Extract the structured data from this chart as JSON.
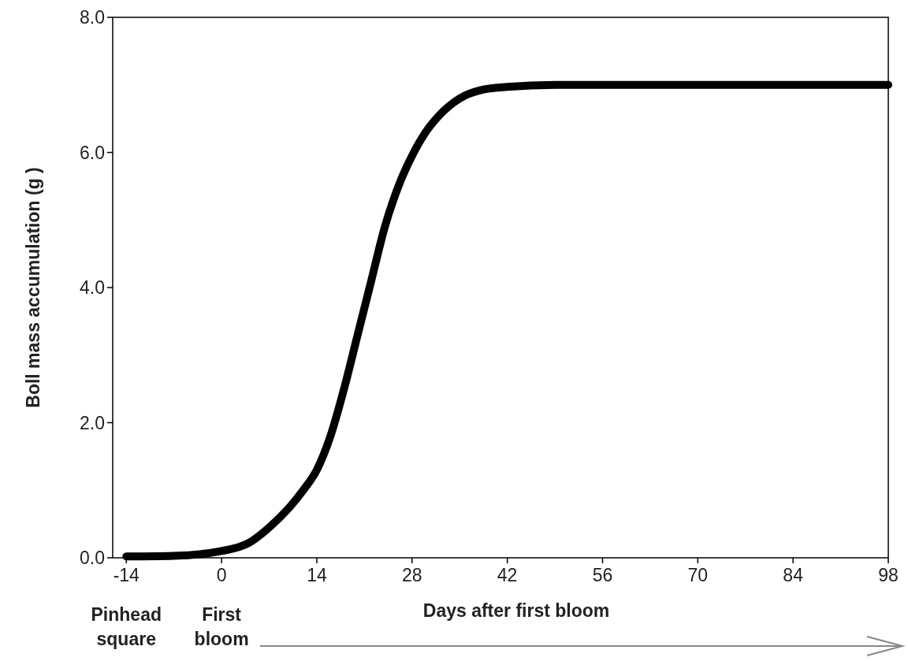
{
  "chart_data": {
    "type": "line",
    "xlabel": "Days after first bloom",
    "ylabel": "Boll mass accumulation (g )",
    "x": [
      -14,
      -7,
      0,
      4,
      7,
      10,
      12,
      14,
      16,
      18,
      20,
      22,
      24,
      26,
      28,
      30,
      32,
      35,
      38,
      42,
      49,
      56,
      70,
      84,
      98
    ],
    "series": [
      {
        "color": "#000000",
        "values": [
          0.02,
          0.03,
          0.1,
          0.22,
          0.45,
          0.75,
          1.0,
          1.3,
          1.8,
          2.5,
          3.3,
          4.1,
          4.9,
          5.5,
          5.95,
          6.3,
          6.55,
          6.8,
          6.92,
          6.97,
          7.0,
          7.0,
          7.0,
          7.0,
          7.0
        ]
      }
    ],
    "xlim": [
      -16,
      98
    ],
    "xticks": [
      -14,
      0,
      14,
      28,
      42,
      56,
      70,
      84,
      98
    ],
    "ylim": [
      0,
      8
    ],
    "yticks": [
      {
        "value": 0,
        "label": "0.0"
      },
      {
        "value": 2,
        "label": "2.0"
      },
      {
        "value": 4,
        "label": "4.0"
      },
      {
        "value": 6,
        "label": "6.0"
      },
      {
        "value": 8,
        "label": "8.0"
      }
    ],
    "grid": false,
    "marker": "none",
    "line_style": "solid",
    "annotations": [
      "Pinhead square",
      "First bloom"
    ]
  }
}
